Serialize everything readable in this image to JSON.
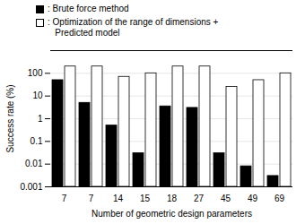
{
  "chart_data": {
    "type": "bar",
    "categories": [
      "7",
      "7",
      "14",
      "15",
      "18",
      "27",
      "45",
      "49",
      "69"
    ],
    "series": [
      {
        "name": ": Brute force method",
        "color": "#000000",
        "values": [
          50,
          5,
          0.5,
          0.03,
          3.5,
          3.0,
          0.03,
          0.008,
          0.003
        ]
      },
      {
        "name": ": Optimization of the range of dimensions +\n   Predicted model",
        "color": "#ffffff",
        "values": [
          200,
          200,
          70,
          100,
          200,
          200,
          25,
          50,
          100
        ]
      }
    ],
    "xlabel": "Number of geometric design parameters",
    "ylabel": "Success rate (%)",
    "ylim": [
      0.001,
      1000
    ],
    "yticks": [
      0.001,
      0.01,
      0.1,
      1,
      10,
      100
    ],
    "log": "y",
    "grid": true,
    "legend": "upper left"
  }
}
